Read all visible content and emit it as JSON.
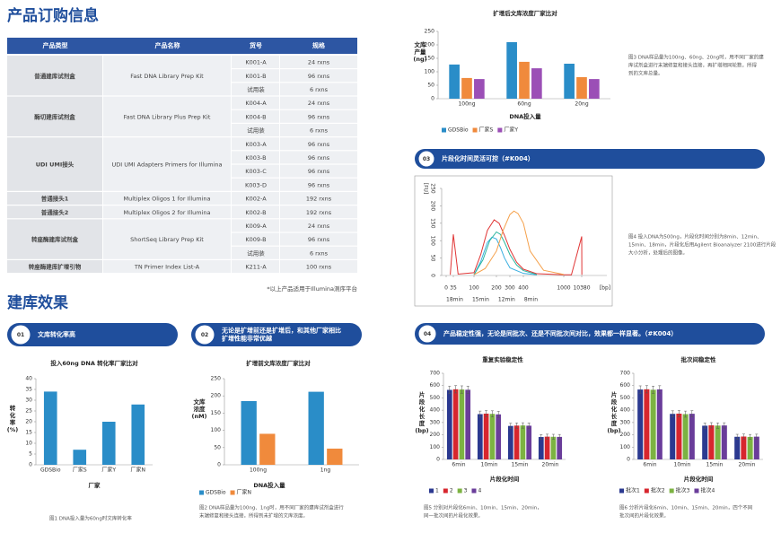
{
  "order": {
    "title": "产品订购信息",
    "header": [
      "产品类型",
      "产品名称",
      "货号",
      "规格"
    ],
    "groups": [
      {
        "type": "普通建库试剂盒",
        "name": "Fast DNA Library Prep Kit",
        "items": [
          {
            "code": "K001-A",
            "spec": "24 rxns"
          },
          {
            "code": "K001-B",
            "spec": "96 rxns"
          },
          {
            "code": "试用装",
            "spec": "6 rxns"
          }
        ]
      },
      {
        "type": "酶切建库试剂盒",
        "name": "Fast DNA Library Plus Prep Kit",
        "items": [
          {
            "code": "K004-A",
            "spec": "24 rxns"
          },
          {
            "code": "K004-B",
            "spec": "96 rxns"
          },
          {
            "code": "试用装",
            "spec": "6 rxns"
          }
        ]
      },
      {
        "type": "UDI UMI接头",
        "name": "UDI UMI Adapters Primers for Illumina",
        "items": [
          {
            "code": "K003-A",
            "spec": "96 rxns"
          },
          {
            "code": "K003-B",
            "spec": "96 rxns"
          },
          {
            "code": "K003-C",
            "spec": "96 rxns"
          },
          {
            "code": "K003-D",
            "spec": "96 rxns"
          }
        ]
      },
      {
        "type": "普通接头1",
        "name": "Multiplex Oligos 1 for Illumina",
        "items": [
          {
            "code": "K002-A",
            "spec": "192 rxns"
          }
        ]
      },
      {
        "type": "普通接头2",
        "name": "Multiplex Oligos 2 for Illumina",
        "items": [
          {
            "code": "K002-B",
            "spec": "192 rxns"
          }
        ]
      },
      {
        "type": "转座酶建库试剂盒",
        "name": "ShortSeq Library Prep Kit",
        "items": [
          {
            "code": "K009-A",
            "spec": "24 rxns"
          },
          {
            "code": "K009-B",
            "spec": "96 rxns"
          },
          {
            "code": "试用装",
            "spec": "6 rxns"
          }
        ]
      },
      {
        "type": "转座酶建库扩增引物",
        "name": "TN Primer Index List-A",
        "items": [
          {
            "code": "K211-A",
            "spec": "100 rxns"
          }
        ]
      }
    ],
    "note": "*以上产品适用于Illumina测序平台"
  },
  "results": {
    "title": "建库效果",
    "sections": [
      {
        "number": "01",
        "lines": [
          "文库转化率高"
        ]
      },
      {
        "number": "02",
        "lines": [
          "无论是扩增前还是扩增后，和其他厂家相比",
          "扩增性能非常优越"
        ]
      },
      {
        "number": "03",
        "lines": [
          "片段化时间灵活可控（#K004）"
        ]
      },
      {
        "number": "04",
        "lines": [
          "产品稳定性强，无论是同批次、还是不同批次间对比，效果都一样显著。（#K004）"
        ]
      }
    ]
  },
  "chart_data": [
    {
      "type": "bar",
      "title": "投入60ng DNA 转化率厂家比对",
      "ylabel": [
        "转",
        "化",
        "率",
        "(%)"
      ],
      "xlabel": "厂家",
      "categories": [
        "GDSBio",
        "厂家S",
        "厂家Y",
        "厂家N"
      ],
      "values": [
        34,
        7,
        20,
        28
      ],
      "color": "#2a8dc8",
      "ylim": [
        0,
        40
      ],
      "yticks": [
        0,
        5,
        10,
        15,
        20,
        25,
        30,
        35,
        40
      ],
      "caption": [
        "图1  DNA投入量为60ng时文库转化率"
      ]
    },
    {
      "type": "bar",
      "title": "扩增前文库浓度厂家比对",
      "ylabel": [
        "文库",
        "浓度",
        "(nM)"
      ],
      "xlabel": "DNA投入量",
      "categories": [
        "100ng",
        "1ng"
      ],
      "series": [
        {
          "name": "GDSBio",
          "color": "#2a8dc8",
          "values": [
            185,
            212
          ]
        },
        {
          "name": "厂家N",
          "color": "#f08a3c",
          "values": [
            90,
            47
          ]
        }
      ],
      "ylim": [
        0,
        250
      ],
      "yticks": [
        0,
        50,
        100,
        150,
        200,
        250
      ],
      "caption": [
        "图2  DNA样品量为100ng、1ng时，用不同厂家的建库试剂盒进行",
        "末端修复和接头连接，所得到未扩增的文库浓度。"
      ]
    },
    {
      "type": "bar",
      "title": "扩增后文库浓度厂家比对",
      "ylabel": [
        "文库",
        "产量",
        "(ng)"
      ],
      "xlabel": "DNA投入量",
      "categories": [
        "100ng",
        "60ng",
        "20ng"
      ],
      "series": [
        {
          "name": "GDSBio",
          "color": "#2a8dc8",
          "values": [
            127,
            210,
            130
          ]
        },
        {
          "name": "厂家S",
          "color": "#f08a3c",
          "values": [
            77,
            137,
            80
          ]
        },
        {
          "name": "厂家Y",
          "color": "#9b4fb6",
          "values": [
            73,
            113,
            73
          ]
        }
      ],
      "ylim": [
        0,
        250
      ],
      "yticks": [
        0,
        50,
        100,
        150,
        200,
        250
      ],
      "caption": [
        "图3  DNA样品量为100ng、60ng、20ng时，用不同厂家的建",
        "库试剂盒进行末端修复和接头连接，再扩增相同轮数，所得",
        "到的文库总量。"
      ]
    },
    {
      "type": "line",
      "ylabel": "[FU]",
      "xlabel": "[bp]",
      "series": [
        {
          "name": "18min",
          "color": "#38aee0",
          "x": [
            100,
            130,
            160,
            180,
            200,
            230,
            260,
            300,
            400,
            600
          ],
          "values": [
            2,
            40,
            95,
            110,
            105,
            80,
            50,
            22,
            6,
            2
          ]
        },
        {
          "name": "15min",
          "color": "#2bb59e",
          "x": [
            100,
            140,
            170,
            200,
            230,
            260,
            300,
            350,
            400,
            600
          ],
          "values": [
            2,
            45,
            100,
            125,
            118,
            95,
            60,
            30,
            14,
            3
          ]
        },
        {
          "name": "12min",
          "color": "#e03535",
          "x": [
            20,
            35,
            50,
            100,
            130,
            160,
            190,
            220,
            260,
            300,
            350,
            400,
            600,
            1000,
            5000,
            10380,
            10460
          ],
          "values": [
            2,
            118,
            4,
            8,
            60,
            130,
            160,
            150,
            115,
            75,
            38,
            18,
            5,
            2,
            2,
            112,
            2
          ]
        },
        {
          "name": "8min",
          "color": "#f5a04a",
          "x": [
            100,
            150,
            200,
            250,
            300,
            330,
            360,
            400,
            500,
            700,
            1000
          ],
          "values": [
            2,
            20,
            70,
            130,
            175,
            185,
            178,
            150,
            70,
            15,
            3
          ]
        }
      ],
      "xlim": [
        0,
        10460
      ],
      "xticks": [
        0,
        35,
        100,
        200,
        300,
        400,
        1000,
        10380
      ],
      "ylim": [
        0,
        250
      ],
      "yticks": [
        0,
        50,
        100,
        150,
        200,
        250
      ],
      "caption": [
        "图4  投入DNA为500ng，片段化时间分别为8min、12min、",
        "15min、18min，片段化后用Agilent Bioanalyzer 2100进行片段",
        "大小分析，处理后的图像。"
      ]
    },
    {
      "type": "bar",
      "title": "重复实验稳定性",
      "ylabel": [
        "片",
        "段",
        "化",
        "长",
        "度",
        "(bp)"
      ],
      "xlabel": "片段化时间",
      "categories": [
        "6min",
        "10min",
        "15min",
        "20min"
      ],
      "series": [
        {
          "name": "1",
          "color": "#2b3990",
          "values": [
            565,
            368,
            272,
            182
          ],
          "errors": [
            30,
            25,
            22,
            20
          ]
        },
        {
          "name": "2",
          "color": "#d7262e",
          "values": [
            570,
            372,
            275,
            185
          ],
          "errors": [
            30,
            25,
            22,
            20
          ]
        },
        {
          "name": "3",
          "color": "#7cb342",
          "values": [
            568,
            370,
            276,
            184
          ],
          "errors": [
            30,
            25,
            22,
            20
          ]
        },
        {
          "name": "4",
          "color": "#6a3d9a",
          "values": [
            566,
            366,
            274,
            183
          ],
          "errors": [
            30,
            25,
            22,
            20
          ]
        }
      ],
      "ylim": [
        0,
        700
      ],
      "yticks": [
        0,
        100,
        200,
        300,
        400,
        500,
        600,
        700
      ],
      "caption": [
        "图5  分别对片段化6min、10min、15min、20min，",
        "同一批次间的片段化效果。"
      ]
    },
    {
      "type": "bar",
      "title": "批次间稳定性",
      "ylabel": [
        "片",
        "段",
        "化",
        "长",
        "度",
        "(bp)"
      ],
      "xlabel": "片段化时间",
      "categories": [
        "6min",
        "10min",
        "15min",
        "20min"
      ],
      "series": [
        {
          "name": "批次1",
          "color": "#2b3990",
          "values": [
            568,
            370,
            274,
            184
          ],
          "errors": [
            30,
            25,
            22,
            20
          ]
        },
        {
          "name": "批次2",
          "color": "#d7262e",
          "values": [
            570,
            372,
            277,
            186
          ],
          "errors": [
            30,
            25,
            22,
            20
          ]
        },
        {
          "name": "批次3",
          "color": "#7cb342",
          "values": [
            566,
            368,
            275,
            183
          ],
          "errors": [
            30,
            25,
            22,
            20
          ]
        },
        {
          "name": "批次4",
          "color": "#6a3d9a",
          "values": [
            569,
            371,
            276,
            185
          ],
          "errors": [
            30,
            25,
            22,
            20
          ]
        }
      ],
      "ylim": [
        0,
        700
      ],
      "yticks": [
        0,
        100,
        200,
        300,
        400,
        500,
        600,
        700
      ],
      "caption": [
        "图6  分析片段化6min、10min、15min、20min，四个不同",
        "批次间的片段化效果。"
      ]
    }
  ]
}
